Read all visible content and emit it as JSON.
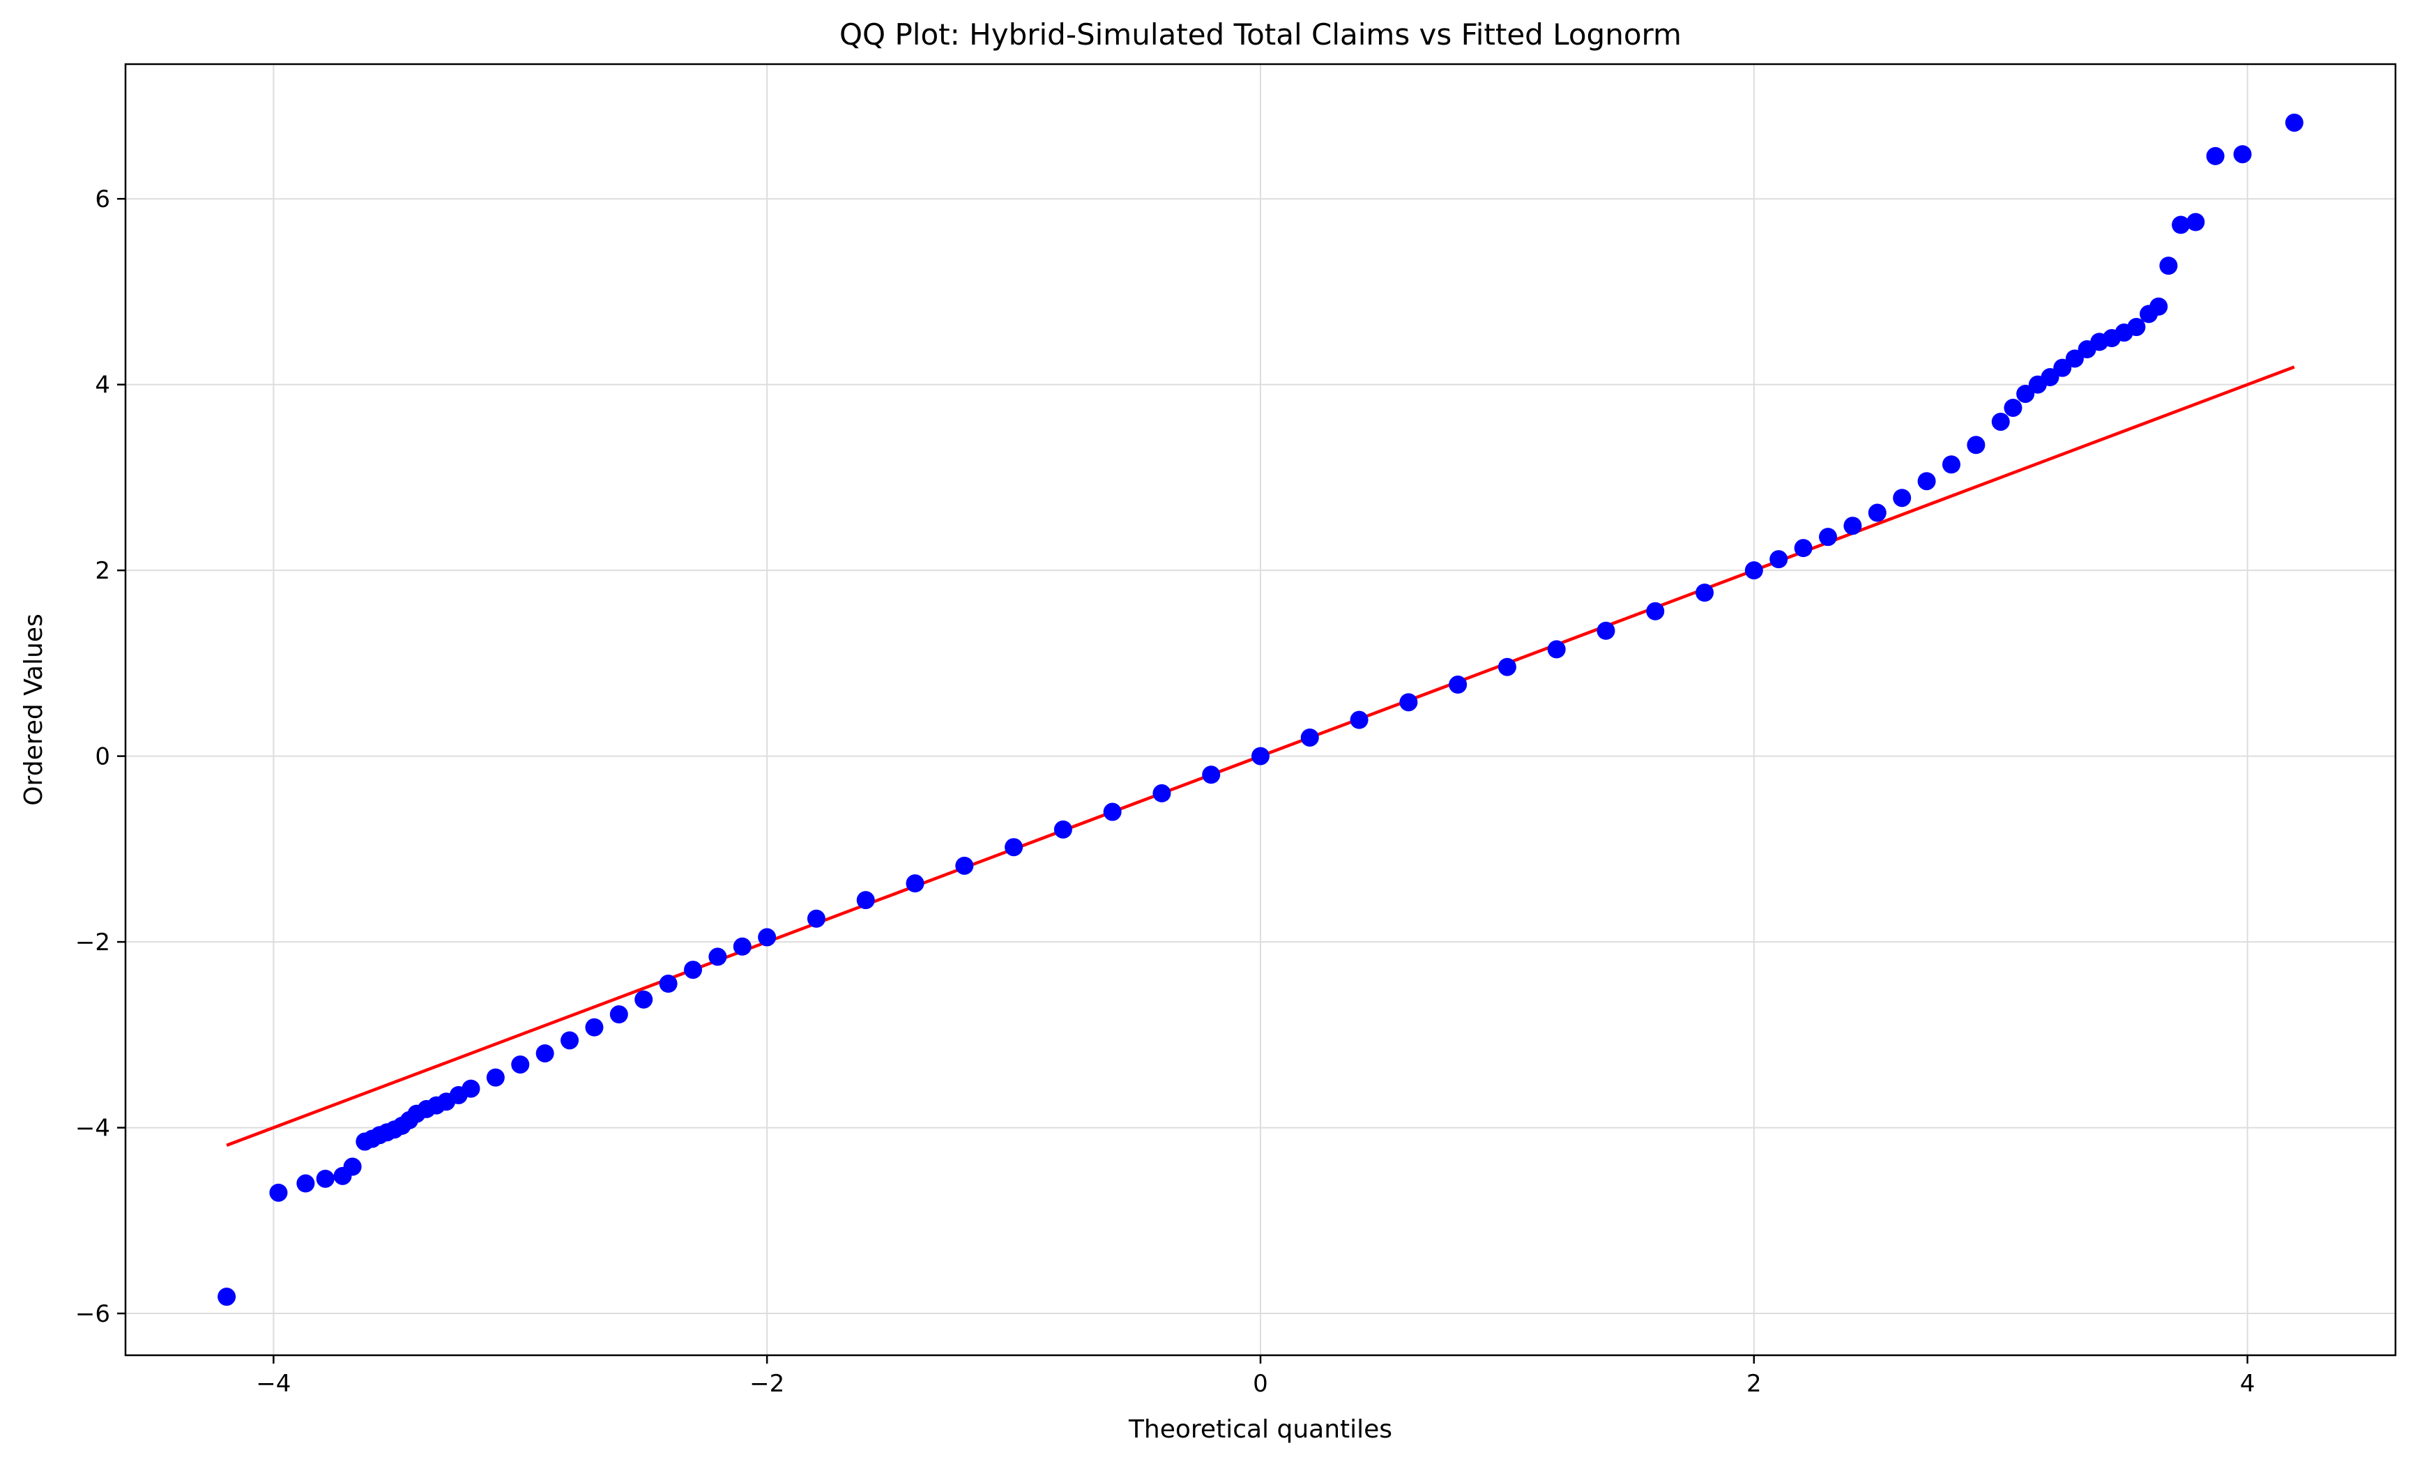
{
  "chart_data": {
    "type": "scatter",
    "title": "QQ Plot: Hybrid-Simulated Total Claims vs Fitted Lognorm",
    "xlabel": "Theoretical quantiles",
    "ylabel": "Ordered Values",
    "xlim": [
      -4.6,
      4.6
    ],
    "ylim": [
      -6.45,
      7.45
    ],
    "xticks": [
      -4,
      -2,
      0,
      2,
      4
    ],
    "yticks": [
      -6,
      -4,
      -2,
      0,
      2,
      4,
      6
    ],
    "xtick_labels": [
      "−4",
      "−2",
      "0",
      "2",
      "4"
    ],
    "ytick_labels": [
      "−6",
      "−4",
      "−2",
      "0",
      "2",
      "4",
      "6"
    ],
    "grid": true,
    "colors": {
      "points": "#0000ff",
      "fit_line": "#ff0000",
      "grid": "#dddddd"
    },
    "series": [
      {
        "kind": "points",
        "x": [
          -4.19,
          -3.98,
          -3.87,
          -3.79,
          -3.72,
          -3.68,
          -3.63,
          -3.6,
          -3.57,
          -3.54,
          -3.51,
          -3.48,
          -3.45,
          -3.42,
          -3.38,
          -3.34,
          -3.3,
          -3.25,
          -3.2,
          -3.1,
          -3.0,
          -2.9,
          -2.8,
          -2.7,
          -2.6,
          -2.5,
          -2.4,
          -2.3,
          -2.2,
          -2.1,
          -2.0,
          -1.8,
          -1.6,
          -1.4,
          -1.2,
          -1.0,
          -0.8,
          -0.6,
          -0.4,
          -0.2,
          0.0,
          0.2,
          0.4,
          0.6,
          0.8,
          1.0,
          1.2,
          1.4,
          1.6,
          1.8,
          2.0,
          2.1,
          2.2,
          2.3,
          2.4,
          2.5,
          2.6,
          2.7,
          2.8,
          2.9,
          3.0,
          3.05,
          3.1,
          3.15,
          3.2,
          3.25,
          3.3,
          3.35,
          3.4,
          3.45,
          3.5,
          3.55,
          3.6,
          3.64,
          3.68,
          3.73,
          3.79,
          3.87,
          3.98,
          4.19
        ],
        "y": [
          -5.82,
          -4.7,
          -4.6,
          -4.55,
          -4.52,
          -4.42,
          -4.15,
          -4.12,
          -4.08,
          -4.05,
          -4.02,
          -3.98,
          -3.92,
          -3.85,
          -3.8,
          -3.76,
          -3.72,
          -3.65,
          -3.58,
          -3.46,
          -3.32,
          -3.2,
          -3.06,
          -2.92,
          -2.78,
          -2.62,
          -2.45,
          -2.3,
          -2.16,
          -2.05,
          -1.95,
          -1.75,
          -1.55,
          -1.37,
          -1.18,
          -0.98,
          -0.79,
          -0.6,
          -0.4,
          -0.2,
          0.0,
          0.2,
          0.39,
          0.58,
          0.77,
          0.96,
          1.15,
          1.35,
          1.56,
          1.76,
          2.0,
          2.12,
          2.24,
          2.36,
          2.48,
          2.62,
          2.78,
          2.96,
          3.14,
          3.35,
          3.6,
          3.75,
          3.9,
          4.0,
          4.08,
          4.18,
          4.28,
          4.38,
          4.46,
          4.5,
          4.56,
          4.62,
          4.76,
          4.84,
          5.28,
          5.72,
          5.75,
          6.46,
          6.48,
          6.82
        ]
      },
      {
        "kind": "line",
        "x": [
          -4.19,
          4.19
        ],
        "y": [
          -4.19,
          4.19
        ]
      }
    ]
  }
}
